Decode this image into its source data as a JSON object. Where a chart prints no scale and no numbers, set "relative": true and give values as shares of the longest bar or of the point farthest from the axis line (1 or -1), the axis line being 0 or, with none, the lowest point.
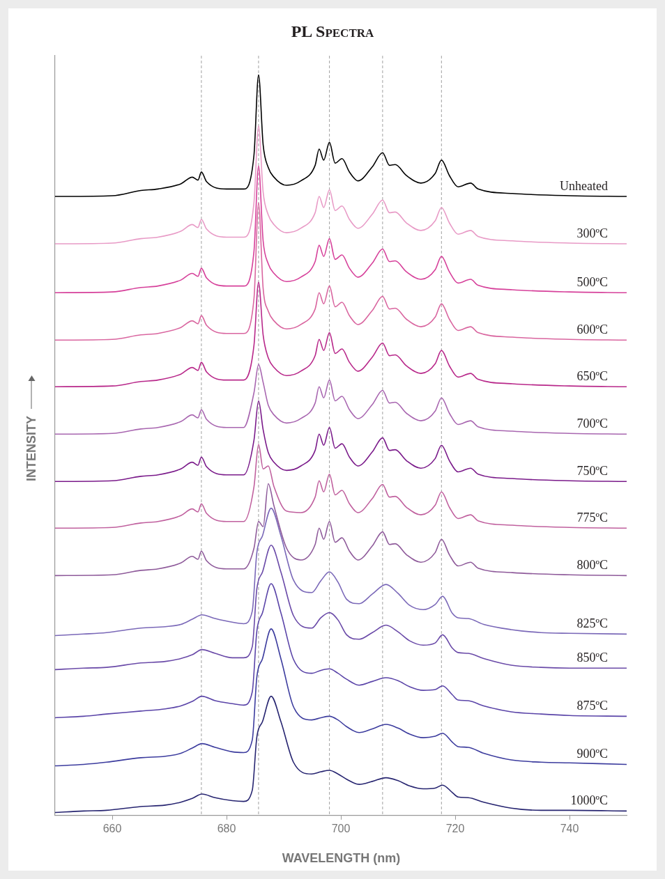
{
  "chart_data": {
    "type": "line",
    "title": "PL Spectra",
    "xlabel": "WAVELENGTH (nm)",
    "ylabel": "INTENSITY",
    "relative": true,
    "xlim": [
      650,
      750
    ],
    "xticks": [
      660,
      680,
      700,
      720,
      740
    ],
    "grid": false,
    "legend": false,
    "marker": "none",
    "line_style": "solid",
    "ref_lines": [
      {
        "axis": "x",
        "value": 675.6,
        "color": "#a0a0a0",
        "line_style": "dashed"
      },
      {
        "axis": "x",
        "value": 685.6,
        "color": "#a0a0a0",
        "line_style": "dashed"
      },
      {
        "axis": "x",
        "value": 698,
        "color": "#a0a0a0",
        "line_style": "dashed"
      },
      {
        "axis": "x",
        "value": 707.3,
        "color": "#a0a0a0",
        "line_style": "dashed"
      },
      {
        "axis": "x",
        "value": 717.6,
        "color": "#a0a0a0",
        "line_style": "dashed"
      }
    ],
    "series": [
      {
        "name": "Unheated",
        "color": "#000000",
        "x": [
          650,
          660,
          665,
          668,
          672,
          674,
          675,
          675.6,
          676.5,
          680,
          683,
          684.8,
          685.6,
          686.4,
          687.3,
          688.3,
          690.5,
          693,
          695.5,
          696.2,
          697,
          698,
          699,
          700.2,
          701.5,
          703,
          705.5,
          707.3,
          708.5,
          709.5,
          711.5,
          714,
          716.5,
          717.6,
          719,
          720.5,
          722.7,
          724,
          730,
          740,
          750
        ],
        "values": [
          0.836,
          0.837,
          0.844,
          0.846,
          0.853,
          0.862,
          0.858,
          0.869,
          0.856,
          0.846,
          0.846,
          0.892,
          1,
          0.906,
          0.875,
          0.862,
          0.851,
          0.857,
          0.878,
          0.9,
          0.885,
          0.909,
          0.881,
          0.887,
          0.869,
          0.857,
          0.876,
          0.895,
          0.878,
          0.879,
          0.864,
          0.854,
          0.867,
          0.885,
          0.864,
          0.849,
          0.854,
          0.846,
          0.84,
          0.837,
          0.836
        ]
      },
      {
        "name": "300ºC",
        "color": "#e89ac6",
        "x": [
          650,
          660,
          665,
          668,
          672,
          674,
          675,
          675.6,
          676.5,
          680,
          683,
          684.8,
          685.6,
          686.4,
          687.3,
          688.3,
          690.5,
          693,
          695.5,
          696.2,
          697,
          698,
          699,
          700.2,
          701.5,
          703,
          705.5,
          707.3,
          708.5,
          709.5,
          711.5,
          714,
          716.5,
          717.6,
          719,
          720.5,
          722.7,
          724,
          730,
          740,
          750
        ],
        "values": [
          0.772,
          0.773,
          0.779,
          0.781,
          0.789,
          0.798,
          0.794,
          0.805,
          0.792,
          0.781,
          0.781,
          0.828,
          0.931,
          0.842,
          0.811,
          0.798,
          0.787,
          0.793,
          0.814,
          0.836,
          0.821,
          0.845,
          0.817,
          0.823,
          0.805,
          0.793,
          0.812,
          0.831,
          0.814,
          0.815,
          0.8,
          0.79,
          0.803,
          0.821,
          0.8,
          0.785,
          0.79,
          0.782,
          0.776,
          0.773,
          0.772
        ]
      },
      {
        "name": "500ºC",
        "color": "#d6409a",
        "x": [
          650,
          660,
          665,
          668,
          672,
          674,
          675,
          675.6,
          676.5,
          680,
          683,
          684.8,
          685.6,
          686.4,
          687.3,
          688.3,
          690.5,
          693,
          695.5,
          696.2,
          697,
          698,
          699,
          700.2,
          701.5,
          703,
          705.5,
          707.3,
          708.5,
          709.5,
          711.5,
          714,
          716.5,
          717.6,
          719,
          720.5,
          722.7,
          724,
          730,
          740,
          750
        ],
        "values": [
          0.706,
          0.707,
          0.713,
          0.715,
          0.723,
          0.732,
          0.728,
          0.739,
          0.726,
          0.715,
          0.715,
          0.762,
          0.877,
          0.776,
          0.745,
          0.732,
          0.721,
          0.727,
          0.748,
          0.77,
          0.755,
          0.779,
          0.751,
          0.757,
          0.739,
          0.727,
          0.746,
          0.765,
          0.748,
          0.749,
          0.734,
          0.724,
          0.737,
          0.755,
          0.734,
          0.719,
          0.724,
          0.716,
          0.71,
          0.707,
          0.706
        ]
      },
      {
        "name": "600ºC",
        "color": "#d9659f",
        "x": [
          650,
          660,
          665,
          668,
          672,
          674,
          675,
          675.6,
          676.5,
          680,
          683,
          684.8,
          685.6,
          686.4,
          687.3,
          688.3,
          690.5,
          693,
          695.5,
          696.2,
          697,
          698,
          699,
          700.2,
          701.5,
          703,
          705.5,
          707.3,
          708.5,
          709.5,
          711.5,
          714,
          716.5,
          717.6,
          719,
          720.5,
          722.7,
          724,
          730,
          740,
          750
        ],
        "values": [
          0.642,
          0.643,
          0.649,
          0.651,
          0.659,
          0.668,
          0.664,
          0.675,
          0.662,
          0.651,
          0.651,
          0.698,
          0.827,
          0.712,
          0.681,
          0.668,
          0.657,
          0.663,
          0.684,
          0.706,
          0.691,
          0.715,
          0.687,
          0.693,
          0.675,
          0.663,
          0.682,
          0.701,
          0.684,
          0.685,
          0.67,
          0.66,
          0.673,
          0.691,
          0.67,
          0.655,
          0.66,
          0.652,
          0.646,
          0.643,
          0.642
        ]
      },
      {
        "name": "650ºC",
        "color": "#b8288a",
        "x": [
          650,
          660,
          665,
          668,
          672,
          674,
          675,
          675.6,
          676.5,
          680,
          683,
          684.8,
          685.6,
          686.4,
          687.3,
          688.3,
          690.5,
          693,
          695.5,
          696.2,
          697,
          698,
          699,
          700.2,
          701.5,
          703,
          705.5,
          707.3,
          708.5,
          709.5,
          711.5,
          714,
          716.5,
          717.6,
          719,
          720.5,
          722.7,
          724,
          730,
          740,
          750
        ],
        "values": [
          0.579,
          0.58,
          0.586,
          0.588,
          0.596,
          0.605,
          0.601,
          0.612,
          0.599,
          0.588,
          0.588,
          0.635,
          0.72,
          0.649,
          0.618,
          0.605,
          0.594,
          0.6,
          0.621,
          0.643,
          0.628,
          0.652,
          0.624,
          0.63,
          0.612,
          0.6,
          0.619,
          0.638,
          0.621,
          0.622,
          0.607,
          0.597,
          0.61,
          0.628,
          0.607,
          0.592,
          0.597,
          0.589,
          0.583,
          0.58,
          0.579
        ]
      },
      {
        "name": "700ºC",
        "color": "#a866b0",
        "x": [
          650,
          660,
          665,
          668,
          672,
          674,
          675,
          675.6,
          676.5,
          680,
          683,
          684.8,
          685.6,
          686.4,
          687.3,
          688.3,
          690.5,
          693,
          695.5,
          696.2,
          697,
          698,
          699,
          700.2,
          701.5,
          703,
          705.5,
          707.3,
          708.5,
          709.5,
          711.5,
          714,
          716.5,
          717.6,
          719,
          720.5,
          722.7,
          724,
          730,
          740,
          750
        ],
        "values": [
          0.515,
          0.516,
          0.522,
          0.524,
          0.532,
          0.541,
          0.537,
          0.548,
          0.535,
          0.524,
          0.524,
          0.571,
          0.609,
          0.585,
          0.554,
          0.541,
          0.53,
          0.536,
          0.557,
          0.579,
          0.564,
          0.588,
          0.56,
          0.566,
          0.548,
          0.536,
          0.555,
          0.574,
          0.557,
          0.558,
          0.543,
          0.533,
          0.546,
          0.564,
          0.543,
          0.528,
          0.533,
          0.525,
          0.519,
          0.516,
          0.515
        ]
      },
      {
        "name": "750ºC",
        "color": "#7a1a8a",
        "x": [
          650,
          660,
          665,
          668,
          672,
          674,
          675,
          675.6,
          676.5,
          680,
          683,
          684.8,
          685.6,
          686.4,
          687.3,
          688.3,
          690.5,
          693,
          695.5,
          696.2,
          697,
          698,
          699,
          700.2,
          701.5,
          703,
          705.5,
          707.3,
          708.5,
          709.5,
          711.5,
          714,
          716.5,
          717.6,
          719,
          720.5,
          722.7,
          724,
          730,
          740,
          750
        ],
        "values": [
          0.451,
          0.452,
          0.458,
          0.46,
          0.468,
          0.477,
          0.473,
          0.484,
          0.471,
          0.46,
          0.46,
          0.507,
          0.56,
          0.521,
          0.49,
          0.477,
          0.466,
          0.472,
          0.493,
          0.515,
          0.5,
          0.524,
          0.496,
          0.502,
          0.484,
          0.472,
          0.491,
          0.51,
          0.493,
          0.494,
          0.479,
          0.469,
          0.482,
          0.5,
          0.479,
          0.464,
          0.469,
          0.461,
          0.455,
          0.452,
          0.451
        ]
      },
      {
        "name": "775ºC",
        "color": "#c0609e",
        "x": [
          650,
          660,
          665,
          668,
          672,
          674,
          675,
          675.6,
          676.5,
          680,
          683,
          684.8,
          685.6,
          686.4,
          687.3,
          688.3,
          690.5,
          693,
          695.5,
          696.2,
          697,
          698,
          699,
          700.2,
          701.5,
          703,
          705.5,
          707.3,
          708.5,
          709.5,
          711.5,
          714,
          716.5,
          717.6,
          719,
          720.5,
          722.7,
          724,
          730,
          740,
          750
        ],
        "values": [
          0.388,
          0.389,
          0.395,
          0.397,
          0.405,
          0.414,
          0.41,
          0.421,
          0.408,
          0.397,
          0.397,
          0.444,
          0.501,
          0.468,
          0.472,
          0.444,
          0.411,
          0.409,
          0.43,
          0.452,
          0.437,
          0.461,
          0.433,
          0.439,
          0.421,
          0.409,
          0.428,
          0.447,
          0.43,
          0.431,
          0.416,
          0.406,
          0.419,
          0.437,
          0.416,
          0.401,
          0.406,
          0.398,
          0.392,
          0.389,
          0.388
        ]
      },
      {
        "name": "800ºC",
        "color": "#8e5a9a",
        "x": [
          650,
          660,
          665,
          668,
          672,
          674,
          675,
          675.6,
          676.5,
          680,
          683,
          684.8,
          685.6,
          686.4,
          687.3,
          688.3,
          690.5,
          693,
          695.5,
          696.2,
          697,
          698,
          699,
          700.2,
          701.5,
          703,
          705.5,
          707.3,
          708.5,
          709.5,
          711.5,
          714,
          716.5,
          717.6,
          719,
          720.5,
          722.7,
          724,
          730,
          740,
          750
        ],
        "values": [
          0.324,
          0.325,
          0.331,
          0.333,
          0.341,
          0.35,
          0.346,
          0.357,
          0.344,
          0.333,
          0.333,
          0.361,
          0.397,
          0.39,
          0.448,
          0.418,
          0.361,
          0.345,
          0.366,
          0.388,
          0.373,
          0.397,
          0.369,
          0.375,
          0.357,
          0.345,
          0.364,
          0.383,
          0.366,
          0.367,
          0.352,
          0.342,
          0.355,
          0.373,
          0.352,
          0.337,
          0.342,
          0.334,
          0.328,
          0.325,
          0.324
        ]
      },
      {
        "name": "825ºC",
        "color": "#7a68b8",
        "x": [
          650,
          655,
          659,
          665,
          669.3,
          672,
          674,
          675.7,
          678,
          681,
          683,
          684.5,
          685.3,
          686.3,
          687.8,
          689.5,
          691.7,
          694.9,
          696.5,
          698,
          699.5,
          701,
          703.2,
          705.5,
          707.9,
          710,
          712,
          714.4,
          716.5,
          717.8,
          719.5,
          720.5,
          722.3,
          725,
          729.8,
          735,
          740,
          750
        ],
        "values": [
          0.243,
          0.245,
          0.247,
          0.253,
          0.255,
          0.258,
          0.265,
          0.271,
          0.266,
          0.261,
          0.259,
          0.276,
          0.355,
          0.378,
          0.415,
          0.378,
          0.318,
          0.301,
          0.317,
          0.329,
          0.315,
          0.292,
          0.286,
          0.299,
          0.312,
          0.3,
          0.284,
          0.278,
          0.285,
          0.296,
          0.273,
          0.267,
          0.266,
          0.258,
          0.251,
          0.247,
          0.246,
          0.245
        ]
      },
      {
        "name": "850ºC",
        "color": "#6a4aa8",
        "x": [
          650,
          655,
          659,
          665,
          669.3,
          672,
          674,
          675.7,
          678,
          681,
          683,
          684.5,
          685.3,
          686.3,
          687.8,
          689.5,
          691.7,
          694.9,
          696.5,
          698,
          699.5,
          701,
          703.2,
          705.5,
          707.9,
          710,
          712,
          714.4,
          716.5,
          717.8,
          719.5,
          720.5,
          722.3,
          725,
          729.8,
          735,
          740,
          750
        ],
        "values": [
          0.197,
          0.199,
          0.2,
          0.206,
          0.208,
          0.212,
          0.217,
          0.224,
          0.219,
          0.213,
          0.213,
          0.228,
          0.306,
          0.329,
          0.365,
          0.329,
          0.27,
          0.253,
          0.267,
          0.274,
          0.264,
          0.244,
          0.238,
          0.247,
          0.257,
          0.248,
          0.236,
          0.23,
          0.233,
          0.244,
          0.226,
          0.22,
          0.219,
          0.212,
          0.203,
          0.2,
          0.199,
          0.199
        ]
      },
      {
        "name": "875ºC",
        "color": "#5a44a8",
        "x": [
          650,
          655,
          659,
          665,
          669.3,
          672,
          674,
          675.7,
          678,
          681,
          683,
          684.5,
          685.3,
          686.3,
          687.8,
          689.5,
          691.7,
          694.9,
          696.5,
          698,
          699.5,
          701,
          703.2,
          705.5,
          707.9,
          710,
          712,
          714.4,
          716.5,
          717.8,
          719.5,
          720.5,
          722.3,
          725,
          729.8,
          735,
          740,
          750
        ],
        "values": [
          0.132,
          0.134,
          0.137,
          0.141,
          0.144,
          0.148,
          0.154,
          0.161,
          0.155,
          0.151,
          0.149,
          0.167,
          0.249,
          0.274,
          0.313,
          0.274,
          0.211,
          0.192,
          0.196,
          0.198,
          0.192,
          0.184,
          0.176,
          0.181,
          0.186,
          0.182,
          0.174,
          0.169,
          0.17,
          0.175,
          0.163,
          0.156,
          0.155,
          0.148,
          0.14,
          0.137,
          0.135,
          0.134
        ]
      },
      {
        "name": "900ºC",
        "color": "#3c3c9e",
        "x": [
          650,
          655,
          659,
          665,
          669.3,
          672,
          674,
          675.7,
          678,
          681,
          683,
          684.5,
          685.3,
          686.3,
          687.8,
          689.5,
          691.7,
          694.9,
          696.5,
          698,
          699.5,
          701,
          703.2,
          705.5,
          707.9,
          710,
          712,
          714.4,
          716.5,
          717.8,
          719.5,
          720.5,
          722.3,
          725,
          729.8,
          735,
          740,
          750
        ],
        "values": [
          0.067,
          0.069,
          0.072,
          0.078,
          0.08,
          0.084,
          0.091,
          0.097,
          0.092,
          0.086,
          0.085,
          0.102,
          0.187,
          0.212,
          0.252,
          0.212,
          0.147,
          0.129,
          0.132,
          0.134,
          0.129,
          0.12,
          0.112,
          0.117,
          0.123,
          0.118,
          0.11,
          0.105,
          0.107,
          0.111,
          0.099,
          0.093,
          0.092,
          0.084,
          0.075,
          0.072,
          0.071,
          0.069
        ]
      },
      {
        "name": "1000ºC",
        "color": "#262470",
        "x": [
          650,
          655,
          659,
          665,
          669.3,
          672,
          674,
          675.7,
          678,
          681,
          683,
          684.5,
          685.3,
          686.3,
          687.8,
          689.5,
          691.7,
          694.9,
          696.5,
          698,
          699.5,
          701,
          703.2,
          705.5,
          707.9,
          710,
          712,
          714.4,
          716.5,
          717.8,
          719.5,
          720.5,
          722.3,
          725,
          729.8,
          735,
          740,
          750
        ],
        "values": [
          0.004,
          0.006,
          0.007,
          0.012,
          0.014,
          0.018,
          0.023,
          0.029,
          0.024,
          0.02,
          0.019,
          0.034,
          0.106,
          0.127,
          0.161,
          0.127,
          0.072,
          0.056,
          0.059,
          0.061,
          0.056,
          0.049,
          0.042,
          0.046,
          0.051,
          0.047,
          0.04,
          0.036,
          0.037,
          0.041,
          0.031,
          0.025,
          0.024,
          0.018,
          0.01,
          0.007,
          0.007,
          0.006
        ]
      }
    ]
  }
}
